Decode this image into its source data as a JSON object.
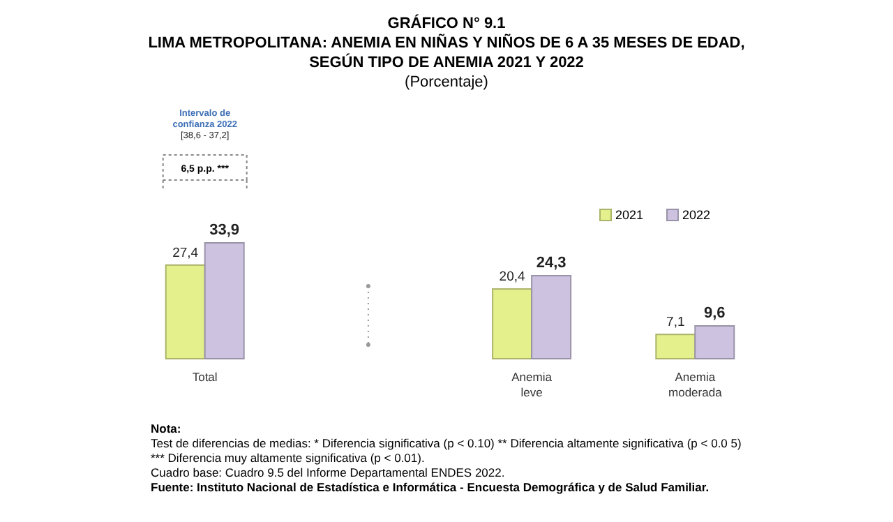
{
  "chart_data": {
    "type": "bar",
    "title": "GRÁFICO N° 9.1\nLIMA METROPOLITANA: ANEMIA EN NIÑAS Y NIÑOS DE 6 A 35 MESES DE EDAD,\nSEGÚN TIPO DE ANEMIA 2021 Y 2022",
    "subtitle": "(Porcentaje)",
    "categories": [
      "Total",
      null,
      "Anemia leve",
      "Anemia moderada"
    ],
    "series": [
      {
        "name": "2021",
        "color": "#e3f08c",
        "values": [
          27.4,
          null,
          20.4,
          7.1
        ],
        "value_labels": [
          "27,4",
          null,
          "20,4",
          "7,1"
        ]
      },
      {
        "name": "2022",
        "color": "#cdc3e0",
        "values": [
          33.9,
          null,
          24.3,
          9.6
        ],
        "value_labels": [
          "33,9",
          null,
          "24,3",
          "9,6"
        ]
      }
    ],
    "legend": "top right",
    "annotations": [
      "Intervalo de\nconfianza 2022\n[38,6 - 37,2]",
      "6,5 p.p. ***",
      "Nota:",
      "Test de diferencias de medias: * Diferencia significativa (p < 0.10) ** Diferencia altamente significativa (p < 0.0 5)",
      "*** Diferencia muy altamente significativa (p < 0.01).",
      "Cuadro base: Cuadro 9.5 del Informe Departamental ENDES 2022.",
      "Fuente: Instituto Nacional de Estadística e Informática - Encuesta Demográfica y de Salud Familiar."
    ]
  }
}
